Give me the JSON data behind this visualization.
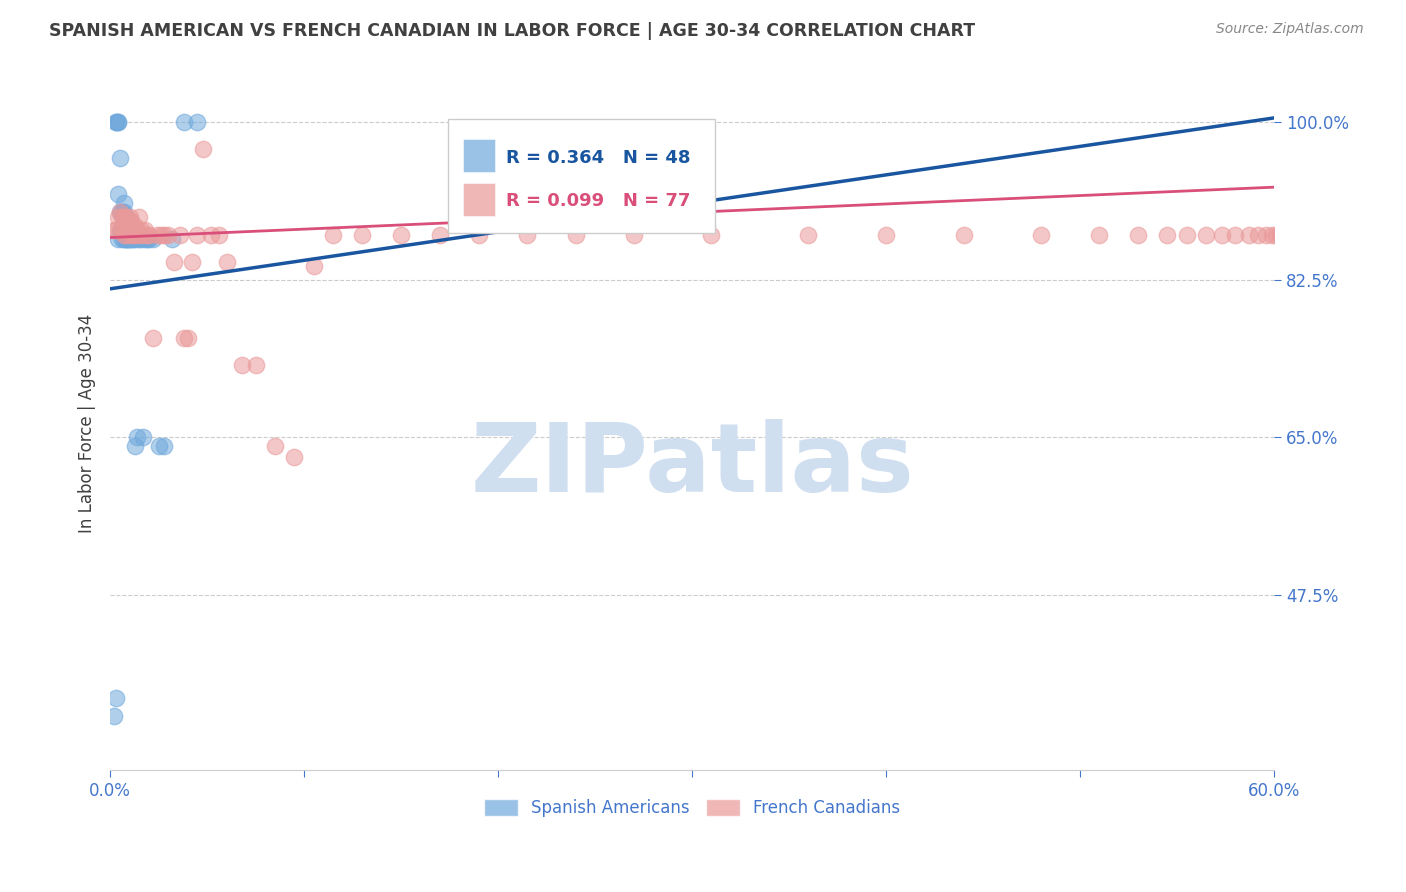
{
  "title": "SPANISH AMERICAN VS FRENCH CANADIAN IN LABOR FORCE | AGE 30-34 CORRELATION CHART",
  "source": "Source: ZipAtlas.com",
  "ylabel": "In Labor Force | Age 30-34",
  "x_min": 0.0,
  "x_max": 0.6,
  "y_min": 0.28,
  "y_max": 1.05,
  "y_ticks": [
    0.475,
    0.65,
    0.825,
    1.0
  ],
  "y_tick_labels": [
    "47.5%",
    "65.0%",
    "82.5%",
    "100.0%"
  ],
  "x_ticks": [
    0.0,
    0.1,
    0.2,
    0.3,
    0.4,
    0.5,
    0.6
  ],
  "x_tick_labels": [
    "0.0%",
    "",
    "",
    "",
    "",
    "",
    "60.0%"
  ],
  "blue_R": 0.364,
  "blue_N": 48,
  "pink_R": 0.099,
  "pink_N": 77,
  "blue_color": "#6fa8dc",
  "pink_color": "#ea9999",
  "blue_line_color": "#1a56a0",
  "pink_line_color": "#d94f7a",
  "title_color": "#404040",
  "axis_label_color": "#404040",
  "tick_color": "#4477cc",
  "grid_color": "#cccccc",
  "watermark_text": "ZIPatlas",
  "watermark_color": "#d0dff0",
  "blue_scatter_x": [
    0.002,
    0.003,
    0.003,
    0.003,
    0.004,
    0.004,
    0.004,
    0.004,
    0.005,
    0.005,
    0.005,
    0.006,
    0.006,
    0.006,
    0.007,
    0.007,
    0.007,
    0.007,
    0.007,
    0.008,
    0.008,
    0.008,
    0.008,
    0.009,
    0.009,
    0.009,
    0.01,
    0.01,
    0.01,
    0.011,
    0.011,
    0.012,
    0.012,
    0.013,
    0.013,
    0.014,
    0.015,
    0.016,
    0.017,
    0.018,
    0.019,
    0.02,
    0.022,
    0.025,
    0.028,
    0.032,
    0.038,
    0.045
  ],
  "blue_scatter_y": [
    0.34,
    0.36,
    1.0,
    1.0,
    1.0,
    1.0,
    0.87,
    0.92,
    0.88,
    0.9,
    0.96,
    0.88,
    0.9,
    0.87,
    0.88,
    0.89,
    0.9,
    0.91,
    0.87,
    0.88,
    0.89,
    0.87,
    0.87,
    0.87,
    0.88,
    0.87,
    0.87,
    0.88,
    0.89,
    0.87,
    0.88,
    0.87,
    0.88,
    0.87,
    0.64,
    0.65,
    0.87,
    0.87,
    0.65,
    0.87,
    0.87,
    0.87,
    0.87,
    0.64,
    0.64,
    0.87,
    1.0,
    1.0
  ],
  "pink_scatter_x": [
    0.002,
    0.003,
    0.004,
    0.005,
    0.005,
    0.006,
    0.006,
    0.007,
    0.007,
    0.008,
    0.008,
    0.009,
    0.01,
    0.01,
    0.011,
    0.012,
    0.013,
    0.013,
    0.014,
    0.015,
    0.015,
    0.016,
    0.017,
    0.018,
    0.019,
    0.02,
    0.022,
    0.024,
    0.026,
    0.028,
    0.03,
    0.033,
    0.036,
    0.038,
    0.04,
    0.042,
    0.045,
    0.048,
    0.052,
    0.056,
    0.06,
    0.068,
    0.075,
    0.085,
    0.095,
    0.105,
    0.115,
    0.13,
    0.15,
    0.17,
    0.19,
    0.215,
    0.24,
    0.27,
    0.31,
    0.36,
    0.4,
    0.44,
    0.48,
    0.51,
    0.53,
    0.545,
    0.555,
    0.565,
    0.573,
    0.58,
    0.587,
    0.592,
    0.596,
    0.599,
    0.601,
    0.603,
    0.605,
    0.607,
    0.609,
    0.611,
    0.612
  ],
  "pink_scatter_y": [
    0.88,
    0.88,
    0.895,
    0.88,
    0.9,
    0.88,
    0.895,
    0.875,
    0.895,
    0.875,
    0.895,
    0.88,
    0.875,
    0.895,
    0.89,
    0.875,
    0.875,
    0.885,
    0.88,
    0.875,
    0.895,
    0.88,
    0.875,
    0.88,
    0.875,
    0.875,
    0.76,
    0.875,
    0.875,
    0.875,
    0.875,
    0.845,
    0.875,
    0.76,
    0.76,
    0.845,
    0.875,
    0.97,
    0.875,
    0.875,
    0.845,
    0.73,
    0.73,
    0.64,
    0.628,
    0.84,
    0.875,
    0.875,
    0.875,
    0.875,
    0.875,
    0.875,
    0.875,
    0.875,
    0.875,
    0.875,
    0.875,
    0.875,
    0.875,
    0.875,
    0.875,
    0.875,
    0.875,
    0.875,
    0.875,
    0.875,
    0.875,
    0.875,
    0.875,
    0.875,
    0.875,
    0.875,
    0.875,
    0.875,
    0.875,
    0.875,
    0.875
  ],
  "blue_line_x0": 0.0,
  "blue_line_y0": 0.815,
  "blue_line_x1": 0.6,
  "blue_line_y1": 1.005,
  "pink_line_x0": 0.0,
  "pink_line_x1": 0.6,
  "pink_line_y0": 0.872,
  "pink_line_y1": 0.928
}
